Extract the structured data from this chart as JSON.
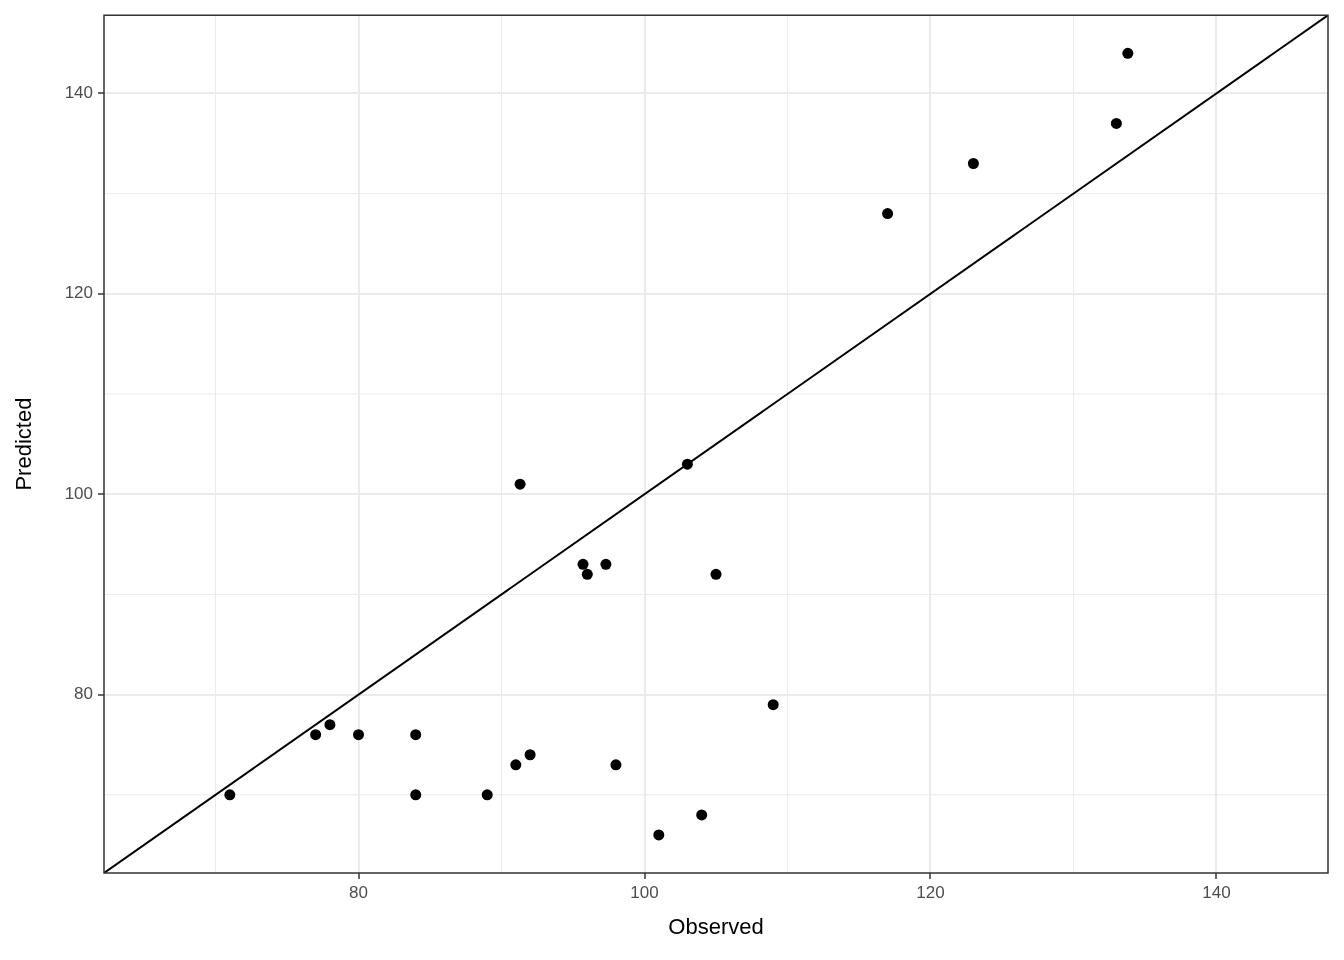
{
  "chart_data": {
    "type": "scatter",
    "xlabel": "Observed",
    "ylabel": "Predicted",
    "xlim": [
      62.2,
      147.8
    ],
    "ylim": [
      62.2,
      147.8
    ],
    "xticks": [
      80,
      100,
      120,
      140
    ],
    "yticks": [
      80,
      100,
      120,
      140
    ],
    "grid": true,
    "marker": "circle",
    "series": [
      {
        "color": "#000000",
        "x": [
          71,
          77,
          78,
          80,
          84,
          84,
          89,
          91,
          92,
          91.3,
          95.7,
          96,
          97.3,
          98,
          101,
          103,
          104,
          105,
          109,
          117,
          123,
          133,
          133.8
        ],
        "values": [
          70,
          76,
          77,
          76,
          76,
          70,
          70,
          73,
          74,
          101,
          93,
          92,
          93,
          73,
          66,
          103,
          68,
          92,
          79,
          128,
          133,
          137,
          144
        ]
      },
      {
        "type": "line",
        "color": "#000000",
        "marker": "none",
        "line_style": "solid",
        "x": [
          62.2,
          147.8
        ],
        "values": [
          62.2,
          147.8
        ]
      }
    ]
  }
}
